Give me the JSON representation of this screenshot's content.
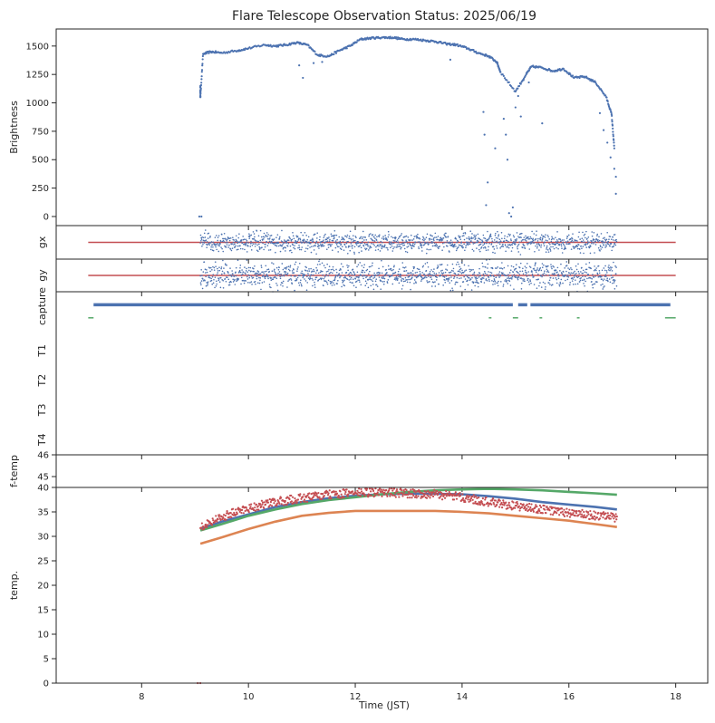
{
  "chart_data": {
    "type": "scatter",
    "title": "Flare Telescope Observation Status: 2025/06/19",
    "xlabel": "Time (JST)",
    "xlim": [
      6.4,
      18.6
    ],
    "xticks": [
      8,
      10,
      12,
      14,
      16,
      18
    ],
    "colors": {
      "blue": "#4c72b0",
      "orange": "#dd8452",
      "green": "#55a868",
      "red": "#c44e52",
      "axis": "#262626"
    },
    "panels": [
      {
        "id": "brightness",
        "ylabel": "Brightness",
        "ylim": [
          -80,
          1650
        ],
        "yticks": [
          0,
          250,
          500,
          750,
          1000,
          1250,
          1500
        ],
        "series": [
          {
            "color": "blue",
            "kind": "dots",
            "points": [
              [
                9.08,
                0
              ],
              [
                9.12,
                0
              ],
              [
                9.1,
                1150
              ],
              [
                9.1,
                1050
              ],
              [
                9.15,
                1430
              ],
              [
                9.3,
                1450
              ],
              [
                9.5,
                1440
              ],
              [
                9.8,
                1460
              ],
              [
                10.0,
                1480
              ],
              [
                10.3,
                1510
              ],
              [
                10.5,
                1500
              ],
              [
                10.7,
                1510
              ],
              [
                10.9,
                1530
              ],
              [
                11.1,
                1510
              ],
              [
                11.3,
                1420
              ],
              [
                11.5,
                1410
              ],
              [
                11.7,
                1460
              ],
              [
                11.9,
                1500
              ],
              [
                12.1,
                1560
              ],
              [
                12.3,
                1570
              ],
              [
                12.5,
                1575
              ],
              [
                12.7,
                1575
              ],
              [
                12.9,
                1560
              ],
              [
                13.1,
                1560
              ],
              [
                13.3,
                1550
              ],
              [
                13.5,
                1540
              ],
              [
                13.7,
                1520
              ],
              [
                13.9,
                1510
              ],
              [
                14.1,
                1480
              ],
              [
                14.3,
                1440
              ],
              [
                14.5,
                1410
              ],
              [
                14.65,
                1360
              ],
              [
                14.72,
                1270
              ],
              [
                15.0,
                1100
              ],
              [
                15.2,
                1250
              ],
              [
                15.3,
                1320
              ],
              [
                15.5,
                1310
              ],
              [
                15.7,
                1280
              ],
              [
                15.9,
                1300
              ],
              [
                16.1,
                1220
              ],
              [
                16.3,
                1230
              ],
              [
                16.5,
                1180
              ],
              [
                16.7,
                1050
              ],
              [
                16.8,
                900
              ],
              [
                16.85,
                600
              ],
              [
                16.88,
                350
              ]
            ]
          },
          {
            "color": "blue",
            "kind": "dots",
            "points": [
              [
                10.95,
                1330
              ],
              [
                11.02,
                1220
              ],
              [
                11.22,
                1350
              ],
              [
                11.38,
                1360
              ],
              [
                13.78,
                1380
              ],
              [
                14.4,
                920
              ],
              [
                14.42,
                720
              ],
              [
                14.45,
                100
              ],
              [
                14.48,
                300
              ],
              [
                14.62,
                600
              ],
              [
                14.78,
                860
              ],
              [
                14.82,
                720
              ],
              [
                14.85,
                500
              ],
              [
                14.88,
                30
              ],
              [
                14.92,
                0
              ],
              [
                14.95,
                80
              ],
              [
                15.0,
                960
              ],
              [
                15.05,
                1060
              ],
              [
                15.1,
                880
              ],
              [
                15.15,
                1200
              ],
              [
                15.25,
                1180
              ],
              [
                15.5,
                820
              ],
              [
                16.58,
                910
              ],
              [
                16.65,
                760
              ],
              [
                16.72,
                650
              ],
              [
                16.78,
                520
              ],
              [
                16.85,
                420
              ],
              [
                16.88,
                200
              ]
            ]
          }
        ]
      },
      {
        "id": "gx",
        "ylabel": "gx",
        "ylim": [
          -1,
          1
        ],
        "yticks": [],
        "hline": {
          "y": 0,
          "color": "red",
          "from": 7.0,
          "to": 18.0
        },
        "series": [
          {
            "color": "blue",
            "kind": "noise",
            "from": 9.1,
            "to": 16.9,
            "mean": 0,
            "spread": 0.35
          }
        ]
      },
      {
        "id": "gy",
        "ylabel": "gy",
        "ylim": [
          -1,
          1
        ],
        "yticks": [],
        "hline": {
          "y": 0,
          "color": "red",
          "from": 7.0,
          "to": 18.0
        },
        "series": [
          {
            "color": "blue",
            "kind": "noise",
            "from": 9.1,
            "to": 16.9,
            "mean": 0,
            "spread": 0.45
          }
        ]
      },
      {
        "id": "capture",
        "ylabel": "capture",
        "ylim": [
          0,
          5
        ],
        "yticks": [],
        "categories": [
          "capture",
          "T1",
          "T2",
          "T3",
          "T4"
        ],
        "series": [
          {
            "color": "blue",
            "kind": "bar",
            "y": 4.6,
            "from": 7.1,
            "to": 17.9,
            "gaps": [
              [
                14.95,
                15.05
              ],
              [
                15.22,
                15.28
              ]
            ]
          },
          {
            "color": "green",
            "kind": "bar",
            "y": 4.2,
            "from": 7.0,
            "to": 7.1,
            "gaps": []
          },
          {
            "color": "green",
            "kind": "bar",
            "y": 4.2,
            "from": 14.5,
            "to": 18.0,
            "gaps": [
              [
                14.55,
                14.95
              ],
              [
                15.05,
                15.45
              ],
              [
                15.5,
                16.15
              ],
              [
                16.2,
                17.8
              ]
            ]
          }
        ]
      },
      {
        "id": "f-temp",
        "ylabel": "f-temp",
        "ylim": [
          44.5,
          46
        ],
        "yticks": [
          45,
          46
        ],
        "series": []
      },
      {
        "id": "temp",
        "ylabel": "temp.",
        "ylim": [
          0,
          40
        ],
        "yticks": [
          0,
          5,
          10,
          15,
          20,
          25,
          30,
          35,
          40
        ],
        "series": [
          {
            "color": "blue",
            "kind": "line",
            "points": [
              [
                9.1,
                31.5
              ],
              [
                9.5,
                33.0
              ],
              [
                10.0,
                34.5
              ],
              [
                10.5,
                36.0
              ],
              [
                11.0,
                37.0
              ],
              [
                11.5,
                37.8
              ],
              [
                12.0,
                38.3
              ],
              [
                12.5,
                38.6
              ],
              [
                13.0,
                38.7
              ],
              [
                13.5,
                38.7
              ],
              [
                14.0,
                38.6
              ],
              [
                14.5,
                38.2
              ],
              [
                15.0,
                37.7
              ],
              [
                15.5,
                37.0
              ],
              [
                16.0,
                36.5
              ],
              [
                16.5,
                36.0
              ],
              [
                16.9,
                35.5
              ]
            ]
          },
          {
            "color": "orange",
            "kind": "line",
            "points": [
              [
                9.1,
                28.5
              ],
              [
                9.5,
                29.8
              ],
              [
                10.0,
                31.5
              ],
              [
                10.5,
                33.0
              ],
              [
                11.0,
                34.2
              ],
              [
                11.5,
                34.8
              ],
              [
                12.0,
                35.2
              ],
              [
                12.5,
                35.2
              ],
              [
                13.0,
                35.2
              ],
              [
                13.5,
                35.2
              ],
              [
                14.0,
                35.0
              ],
              [
                14.5,
                34.7
              ],
              [
                15.0,
                34.2
              ],
              [
                15.5,
                33.7
              ],
              [
                16.0,
                33.2
              ],
              [
                16.5,
                32.5
              ],
              [
                16.9,
                31.9
              ]
            ]
          },
          {
            "color": "green",
            "kind": "line",
            "points": [
              [
                9.1,
                31.2
              ],
              [
                9.5,
                32.5
              ],
              [
                10.0,
                34.2
              ],
              [
                10.5,
                35.5
              ],
              [
                11.0,
                36.6
              ],
              [
                11.5,
                37.4
              ],
              [
                12.0,
                38.0
              ],
              [
                12.5,
                38.6
              ],
              [
                13.0,
                39.1
              ],
              [
                13.5,
                39.4
              ],
              [
                14.0,
                39.6
              ],
              [
                14.5,
                39.7
              ],
              [
                15.0,
                39.6
              ],
              [
                15.5,
                39.4
              ],
              [
                16.0,
                39.1
              ],
              [
                16.5,
                38.8
              ],
              [
                16.9,
                38.5
              ]
            ]
          },
          {
            "color": "red",
            "kind": "noisyline",
            "spread": 0.9,
            "points": [
              [
                9.1,
                32.0
              ],
              [
                9.5,
                34.0
              ],
              [
                10.0,
                35.8
              ],
              [
                10.5,
                37.0
              ],
              [
                11.0,
                37.8
              ],
              [
                11.5,
                38.5
              ],
              [
                12.0,
                38.9
              ],
              [
                12.5,
                39.0
              ],
              [
                13.0,
                38.8
              ],
              [
                13.5,
                38.6
              ],
              [
                14.0,
                38.0
              ],
              [
                14.5,
                37.0
              ],
              [
                15.0,
                36.2
              ],
              [
                15.5,
                35.5
              ],
              [
                16.0,
                34.8
              ],
              [
                16.5,
                34.2
              ],
              [
                16.9,
                33.8
              ]
            ]
          },
          {
            "color": "red",
            "kind": "dots",
            "points": [
              [
                9.05,
                0
              ],
              [
                9.1,
                0
              ]
            ]
          }
        ]
      }
    ]
  }
}
